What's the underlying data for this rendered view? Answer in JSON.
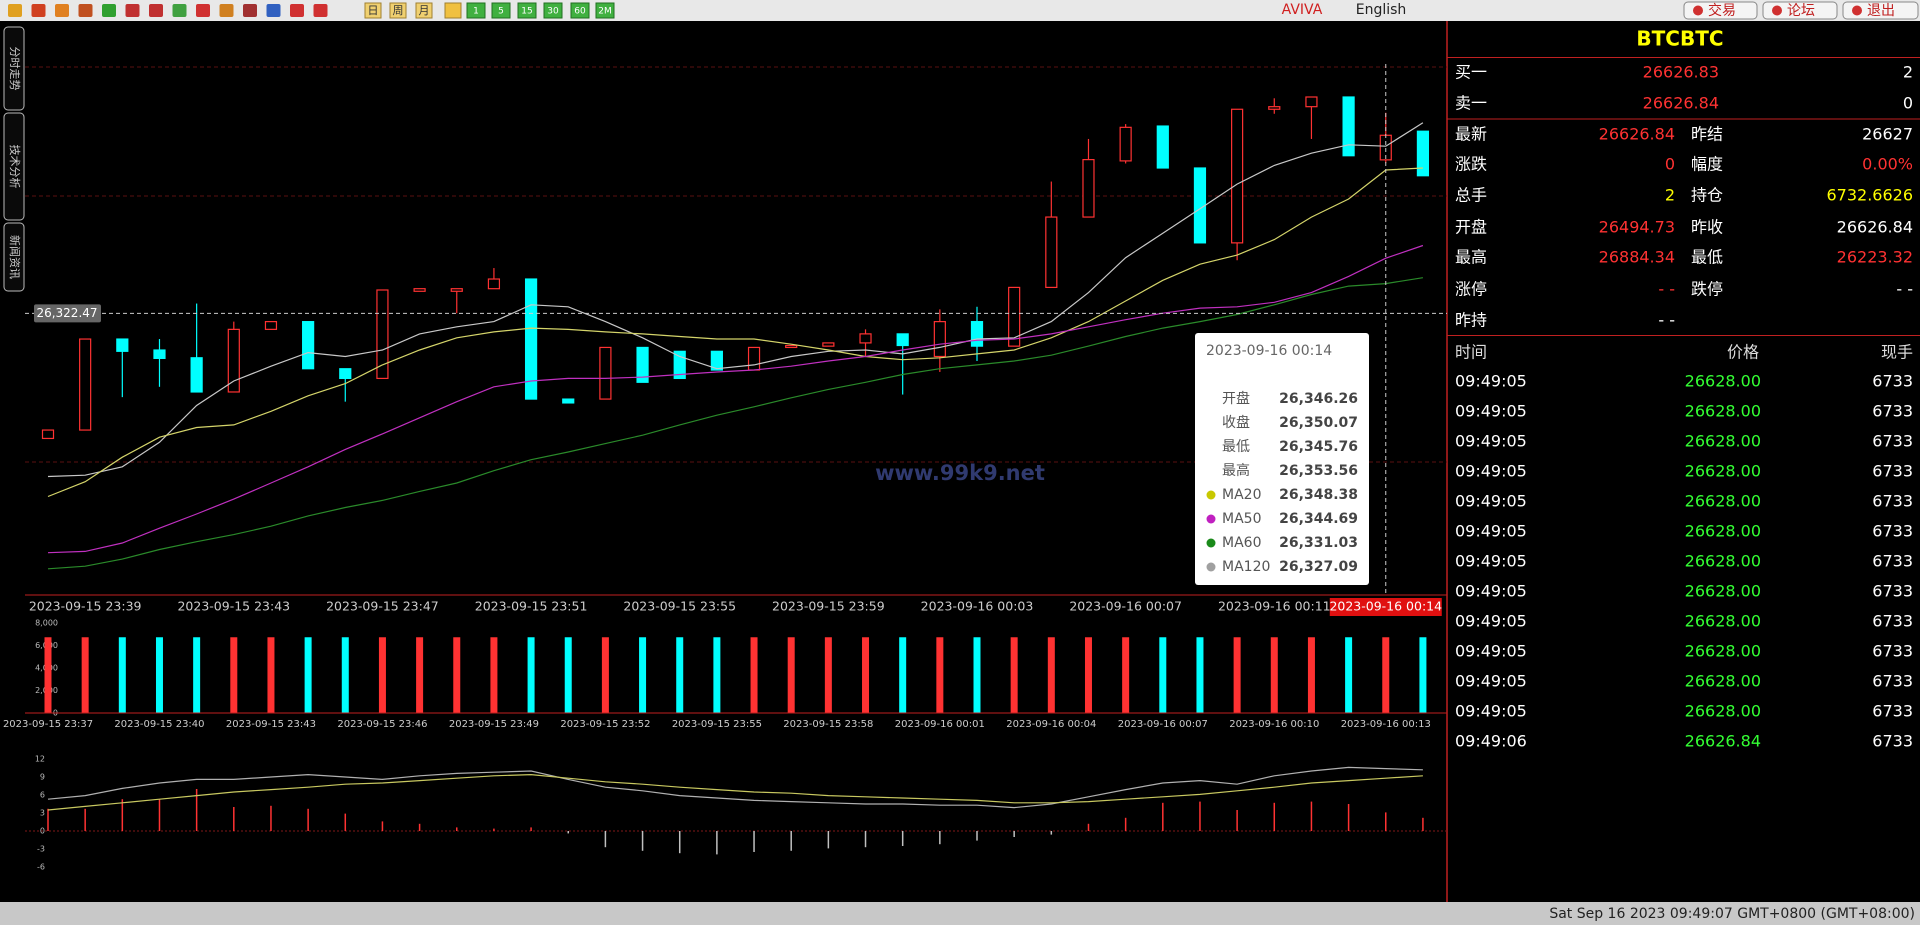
{
  "toolbar": {
    "day": "日",
    "week": "周",
    "month": "月",
    "periods": [
      "1",
      "5",
      "15",
      "30",
      "60",
      "2M"
    ],
    "brand": "AVIVA",
    "language": "English",
    "buttons": [
      "交易",
      "论坛",
      "退出"
    ]
  },
  "sidebar_tabs": [
    "分时走势",
    "技术分析",
    "新闻资讯"
  ],
  "chart": {
    "type": "candlestick",
    "watermark": "www.99k9.net",
    "ylim": [
      26279,
      26367
    ],
    "up_color": "#ff3232",
    "down_color": "#00ffff",
    "crosshair": {
      "value": 26322.47,
      "label": "26,322.47"
    },
    "categories": [
      null,
      "2023-09-15 23:39",
      null,
      null,
      null,
      "2023-09-15 23:43",
      null,
      null,
      null,
      "2023-09-15 23:47",
      null,
      null,
      null,
      "2023-09-15 23:51",
      null,
      null,
      null,
      "2023-09-15 23:55",
      null,
      null,
      null,
      "2023-09-15 23:59",
      null,
      null,
      null,
      "2023-09-16 00:03",
      null,
      null,
      null,
      "2023-09-16 00:07",
      null,
      null,
      null,
      "2023-09-16 00:11",
      null,
      null,
      "2023-09-16 00:14",
      null
    ],
    "open": [
      26303.1,
      26304.4,
      26318.5,
      26316.8,
      26315.6,
      26310.3,
      26320.0,
      26321.2,
      26313.9,
      26312.4,
      26325.9,
      26325.9,
      26326.3,
      26327.8,
      26309.2,
      26309.2,
      26317.2,
      26316.6,
      26316.6,
      26313.7,
      26317.2,
      26317.4,
      26317.9,
      26319.3,
      26315.8,
      26321.2,
      26317.4,
      26326.5,
      26337.4,
      26346.1,
      26351.5,
      26345.0,
      26333.4,
      26354.1,
      26354.5,
      26356.0,
      26346.26,
      26350.7
    ],
    "high": [
      26304.4,
      26318.5,
      26318.5,
      26318.5,
      26324.0,
      26321.2,
      26321.2,
      26321.2,
      26313.9,
      26326.1,
      26326.3,
      26326.3,
      26329.5,
      26327.8,
      26309.2,
      26317.2,
      26317.2,
      26316.6,
      26316.6,
      26317.2,
      26317.5,
      26317.9,
      26320.0,
      26319.3,
      26323.1,
      26323.5,
      26326.5,
      26342.9,
      26349.5,
      26351.8,
      26351.5,
      26345.0,
      26354.1,
      26355.8,
      26356.0,
      26356.0,
      26353.56,
      26350.7
    ],
    "low": [
      26303.1,
      26304.4,
      26309.5,
      26311.1,
      26310.3,
      26310.3,
      26320.0,
      26313.9,
      26308.8,
      26312.4,
      26325.9,
      26322.5,
      26326.3,
      26309.2,
      26308.6,
      26309.2,
      26311.8,
      26312.4,
      26313.7,
      26313.7,
      26317.2,
      26317.4,
      26315.8,
      26309.9,
      26313.4,
      26315.1,
      26317.4,
      26326.5,
      26337.4,
      26345.7,
      26345.0,
      26333.4,
      26330.7,
      26353.4,
      26349.5,
      26346.9,
      26345.76,
      26343.8
    ],
    "close": [
      26304.4,
      26318.5,
      26316.6,
      26315.5,
      26310.3,
      26320.0,
      26321.2,
      26313.9,
      26312.4,
      26326.1,
      26326.3,
      26326.3,
      26327.8,
      26309.2,
      26308.6,
      26317.2,
      26311.8,
      26312.4,
      26313.7,
      26317.2,
      26317.5,
      26317.9,
      26319.3,
      26317.5,
      26321.2,
      26317.4,
      26326.5,
      26337.4,
      26346.3,
      26351.3,
      26345.0,
      26333.4,
      26354.1,
      26354.5,
      26356.0,
      26346.9,
      26350.07,
      26343.8
    ],
    "series": [
      {
        "name": "MA20",
        "color": "#c8c8c8",
        "values": [
          26297.2,
          26297.4,
          26298.7,
          26302.5,
          26308.2,
          26312.0,
          26314.3,
          26316.4,
          26315.8,
          26316.8,
          26319.3,
          26320.4,
          26321.2,
          26323.8,
          26323.5,
          26321.2,
          26318.7,
          26315.8,
          26313.9,
          26314.5,
          26315.8,
          26316.6,
          26316.8,
          26316.2,
          26317.2,
          26318.5,
          26318.7,
          26321.2,
          26325.7,
          26331.1,
          26334.9,
          26338.7,
          26342.5,
          26345.4,
          26347.3,
          26348.6,
          26348.38,
          26352.0
        ]
      },
      {
        "name": "MA50",
        "color": "#d4d46a",
        "values": [
          26294.1,
          26296.4,
          26300.2,
          26303.3,
          26304.8,
          26305.2,
          26307.3,
          26309.7,
          26311.6,
          26314.5,
          26316.8,
          26318.7,
          26319.6,
          26320.2,
          26320.0,
          26319.6,
          26319.3,
          26318.9,
          26318.5,
          26318.5,
          26317.7,
          26316.8,
          26315.8,
          26315.3,
          26315.6,
          26316.2,
          26316.8,
          26318.7,
          26321.2,
          26324.4,
          26327.6,
          26330.1,
          26331.5,
          26333.9,
          26337.4,
          26340.2,
          26344.69,
          26345.0
        ]
      },
      {
        "name": "MA60",
        "color": "#c030c0",
        "values": [
          26285.4,
          26285.6,
          26286.9,
          26289.2,
          26291.4,
          26293.7,
          26296.2,
          26298.7,
          26301.4,
          26303.8,
          26306.3,
          26308.8,
          26311.1,
          26312.0,
          26312.4,
          26312.4,
          26312.6,
          26313.0,
          26313.4,
          26313.7,
          26314.3,
          26315.1,
          26315.8,
          26316.8,
          26317.7,
          26318.3,
          26318.5,
          26319.3,
          26320.4,
          26321.5,
          26322.5,
          26323.3,
          26323.5,
          26324.2,
          26325.7,
          26328.2,
          26331.03,
          26333.0
        ]
      },
      {
        "name": "MA120",
        "color": "#2a8a2a",
        "values": [
          26282.9,
          26283.3,
          26284.4,
          26285.9,
          26287.1,
          26288.2,
          26289.5,
          26291.1,
          26292.4,
          26293.5,
          26294.9,
          26296.2,
          26298.1,
          26299.8,
          26301.0,
          26302.3,
          26303.6,
          26305.2,
          26306.7,
          26308.0,
          26309.4,
          26310.7,
          26311.8,
          26313.0,
          26313.9,
          26314.5,
          26315.1,
          26316.0,
          26317.4,
          26318.9,
          26320.2,
          26321.2,
          26322.3,
          26323.8,
          26325.4,
          26326.7,
          26327.09,
          26328.0
        ]
      }
    ]
  },
  "tooltip": {
    "title": "2023-09-16 00:14",
    "rows": [
      {
        "label": "开盘",
        "value": "26,346.26"
      },
      {
        "label": "收盘",
        "value": "26,350.07"
      },
      {
        "label": "最低",
        "value": "26,345.76"
      },
      {
        "label": "最高",
        "value": "26,353.56"
      }
    ],
    "ma_rows": [
      {
        "value": "26,348.38",
        "color": "#c8c800"
      },
      {
        "value": "26,344.69",
        "color": "#c020c0"
      },
      {
        "value": "26,331.03",
        "color": "#1a8a1a"
      },
      {
        "value": "26,327.09",
        "color": "#a0a0a0"
      }
    ]
  },
  "volume": {
    "type": "bar",
    "ylim": [
      0,
      8000
    ],
    "yticks": [
      0,
      {
        "value": 2000,
        "label": "2,000"
      },
      {
        "value": 4000,
        "label": "4,000"
      },
      {
        "value": 6000,
        "label": "6,000"
      },
      {
        "value": 8000,
        "label": "8,000"
      }
    ],
    "categories": [
      "2023-09-15 23:37",
      null,
      null,
      "2023-09-15 23:40",
      null,
      null,
      "2023-09-15 23:43",
      null,
      null,
      "2023-09-15 23:46",
      null,
      null,
      "2023-09-15 23:49",
      null,
      null,
      "2023-09-15 23:52",
      null,
      null,
      "2023-09-15 23:55",
      null,
      null,
      "2023-09-15 23:58",
      null,
      null,
      "2023-09-16 00:01",
      null,
      null,
      "2023-09-16 00:04",
      null,
      null,
      "2023-09-16 00:07",
      null,
      null,
      "2023-09-16 00:10",
      null,
      null,
      "2023-09-16 00:13",
      null
    ],
    "values": [
      6733,
      6733,
      6733,
      6733,
      6733,
      6733,
      6733,
      6733,
      6733,
      6733,
      6733,
      6733,
      6733,
      6733,
      6733,
      6733,
      6733,
      6733,
      6733,
      6733,
      6733,
      6733,
      6733,
      6733,
      6733,
      6733,
      6733,
      6733,
      6733,
      6733,
      6733,
      6733,
      6733,
      6733,
      6733,
      6733,
      6733,
      6733
    ]
  },
  "macd": {
    "type": "line",
    "ylim": [
      -6,
      12
    ],
    "yticks": [
      12,
      9,
      6,
      3,
      0,
      -3,
      -6
    ],
    "series": [
      {
        "color": "#b0b0b0",
        "values": [
          5.3,
          5.9,
          7.1,
          8.0,
          8.6,
          8.6,
          9.0,
          9.4,
          9.0,
          8.6,
          9.2,
          9.6,
          9.8,
          10.0,
          8.6,
          7.3,
          6.7,
          5.9,
          5.5,
          5.1,
          4.9,
          4.7,
          4.5,
          4.5,
          4.3,
          4.3,
          3.9,
          4.5,
          5.7,
          6.9,
          8.0,
          8.4,
          7.8,
          9.2,
          10.0,
          10.6,
          10.4,
          10.2
        ]
      },
      {
        "color": "#c8c860",
        "values": [
          3.5,
          4.1,
          4.7,
          5.3,
          5.9,
          6.5,
          6.9,
          7.3,
          7.8,
          8.0,
          8.4,
          8.8,
          9.2,
          9.4,
          8.8,
          8.2,
          7.8,
          7.3,
          6.9,
          6.5,
          6.3,
          5.9,
          5.7,
          5.5,
          5.3,
          5.1,
          4.7,
          4.7,
          4.9,
          5.3,
          5.7,
          6.1,
          6.7,
          7.3,
          8.0,
          8.4,
          8.8,
          9.2
        ]
      }
    ],
    "histogram": {
      "up_color": "#ff3232",
      "down_color": "#c0c0c0",
      "values": [
        3.7,
        3.7,
        5.3,
        5.3,
        7.0,
        4.0,
        4.2,
        3.7,
        2.9,
        1.6,
        1.2,
        0.6,
        0.4,
        0.6,
        -0.4,
        -2.7,
        -3.3,
        -3.7,
        -3.9,
        -3.5,
        -3.3,
        -2.9,
        -2.7,
        -2.5,
        -2.2,
        -1.6,
        -1.0,
        -0.6,
        1.2,
        2.2,
        4.7,
        4.9,
        3.5,
        4.7,
        4.9,
        4.5,
        3.1,
        2.2
      ]
    }
  },
  "quote": {
    "symbol": "BTCBTC",
    "rows": [
      [
        "买一",
        "26626.83",
        "2"
      ],
      [
        "卖一",
        "26626.84",
        "0"
      ],
      [
        "最新",
        "26626.84",
        "昨结",
        "26627"
      ],
      [
        "涨跌",
        "0",
        "幅度",
        "0.00%"
      ],
      [
        "总手",
        "2",
        "持仓",
        "6732.6626"
      ],
      [
        "开盘",
        "26494.73",
        "昨收",
        "26626.84"
      ],
      [
        "最高",
        "26884.34",
        "最低",
        "26223.32"
      ],
      [
        "涨停",
        "- -",
        "跌停",
        "- -"
      ],
      [
        "昨持",
        "- -"
      ]
    ]
  },
  "trades": {
    "header": [
      "时间",
      "价格",
      "现手"
    ],
    "rows": [
      [
        "09:49:05",
        "26628.00",
        "6733"
      ],
      [
        "09:49:05",
        "26628.00",
        "6733"
      ],
      [
        "09:49:05",
        "26628.00",
        "6733"
      ],
      [
        "09:49:05",
        "26628.00",
        "6733"
      ],
      [
        "09:49:05",
        "26628.00",
        "6733"
      ],
      [
        "09:49:05",
        "26628.00",
        "6733"
      ],
      [
        "09:49:05",
        "26628.00",
        "6733"
      ],
      [
        "09:49:05",
        "26628.00",
        "6733"
      ],
      [
        "09:49:05",
        "26628.00",
        "6733"
      ],
      [
        "09:49:05",
        "26628.00",
        "6733"
      ],
      [
        "09:49:05",
        "26628.00",
        "6733"
      ],
      [
        "09:49:05",
        "26628.00",
        "6733"
      ],
      [
        "09:49:06",
        "26626.84",
        "6733"
      ]
    ]
  },
  "status": "Sat Sep 16 2023 09:49:07 GMT+0800 (GMT+08:00)"
}
